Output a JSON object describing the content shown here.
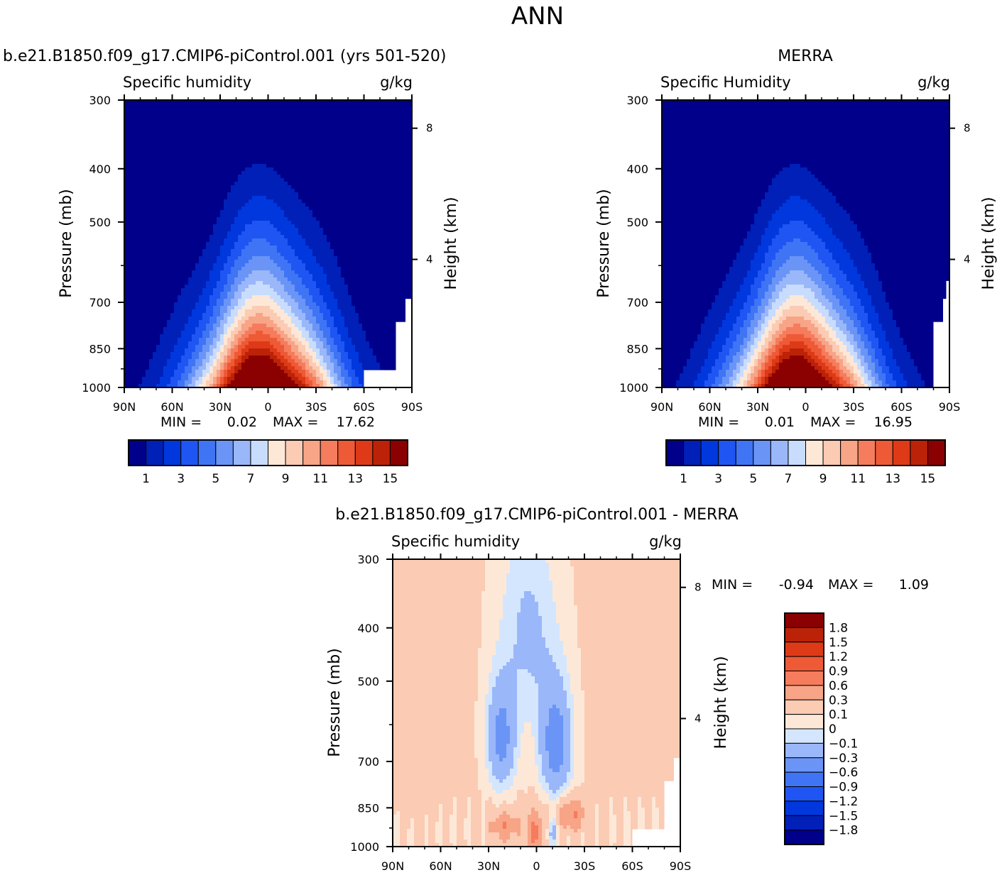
{
  "figure": {
    "title": "ANN"
  },
  "colors": {
    "abs": [
      "#00008b",
      "#0020b8",
      "#0038de",
      "#1f55f2",
      "#3f74f5",
      "#6a95f7",
      "#9ab7fa",
      "#c8dcfd",
      "#fde8d8",
      "#fbcbb3",
      "#f8a487",
      "#f57c5d",
      "#ee5a36",
      "#de3a17",
      "#bb2208",
      "#8b0000"
    ],
    "diff": [
      "#00008b",
      "#0020b8",
      "#0038de",
      "#1f55f2",
      "#3f74f5",
      "#6a95f7",
      "#9ab7fa",
      "#d4e6fd",
      "#fde8d8",
      "#fbcbb3",
      "#f8a487",
      "#f57c5d",
      "#ee5a36",
      "#de3a17",
      "#bb2208",
      "#8b0000"
    ]
  },
  "chart_data": [
    {
      "type": "heatmap",
      "case_title": "b.e21.B1850.f09_g17.CMIP6-piControl.001 (yrs 501-520)",
      "var_title": "Specific humidity",
      "units": "g/kg",
      "ylabel": "Pressure (mb)",
      "ylabel_right": "Height (km)",
      "x_ticks": [
        "90N",
        "60N",
        "30N",
        "0",
        "30S",
        "60S",
        "90S"
      ],
      "y_ticks": [
        "300",
        "400",
        "500",
        "700",
        "850",
        "1000"
      ],
      "y_ticks_right": [
        "8",
        "4"
      ],
      "min_label": "MIN =",
      "min_value": "0.02",
      "max_label": "MAX =",
      "max_value": "17.62",
      "levels": [
        1,
        2,
        3,
        4,
        5,
        6,
        7,
        8,
        9,
        10,
        11,
        12,
        13,
        14,
        15
      ],
      "colorbar_labels": [
        "1",
        "3",
        "5",
        "7",
        "9",
        "11",
        "13",
        "15"
      ],
      "ylim": [
        1000,
        300
      ],
      "xlim": [
        90,
        -90
      ]
    },
    {
      "type": "heatmap",
      "case_title": "MERRA",
      "var_title": "Specific Humidity",
      "units": "g/kg",
      "ylabel": "Pressure (mb)",
      "ylabel_right": "Height (km)",
      "x_ticks": [
        "90N",
        "60N",
        "30N",
        "0",
        "30S",
        "60S",
        "90S"
      ],
      "y_ticks": [
        "300",
        "400",
        "500",
        "700",
        "850",
        "1000"
      ],
      "y_ticks_right": [
        "8",
        "4"
      ],
      "min_label": "MIN =",
      "min_value": "0.01",
      "max_label": "MAX =",
      "max_value": "16.95",
      "levels": [
        1,
        2,
        3,
        4,
        5,
        6,
        7,
        8,
        9,
        10,
        11,
        12,
        13,
        14,
        15
      ],
      "colorbar_labels": [
        "1",
        "3",
        "5",
        "7",
        "9",
        "11",
        "13",
        "15"
      ],
      "ylim": [
        1000,
        300
      ],
      "xlim": [
        90,
        -90
      ]
    },
    {
      "type": "heatmap",
      "case_title": "b.e21.B1850.f09_g17.CMIP6-piControl.001 - MERRA",
      "var_title": "Specific humidity",
      "units": "g/kg",
      "ylabel": "Pressure (mb)",
      "ylabel_right": "Height (km)",
      "x_ticks": [
        "90N",
        "60N",
        "30N",
        "0",
        "30S",
        "60S",
        "90S"
      ],
      "y_ticks": [
        "300",
        "400",
        "500",
        "700",
        "850",
        "1000"
      ],
      "y_ticks_right": [
        "8",
        "4"
      ],
      "min_label": "MIN =",
      "min_value": "-0.94",
      "max_label": "MAX =",
      "max_value": "1.09",
      "levels": [
        -1.8,
        -1.5,
        -1.2,
        -0.9,
        -0.6,
        -0.3,
        -0.1,
        0,
        0.1,
        0.3,
        0.6,
        0.9,
        1.2,
        1.5,
        1.8
      ],
      "colorbar_labels": [
        "1.8",
        "1.5",
        "1.2",
        "0.9",
        "0.6",
        "0.3",
        "0.1",
        "0",
        "−0.1",
        "−0.3",
        "−0.6",
        "−0.9",
        "−1.2",
        "−1.5",
        "−1.8"
      ],
      "ylim": [
        1000,
        300
      ],
      "xlim": [
        90,
        -90
      ]
    }
  ]
}
